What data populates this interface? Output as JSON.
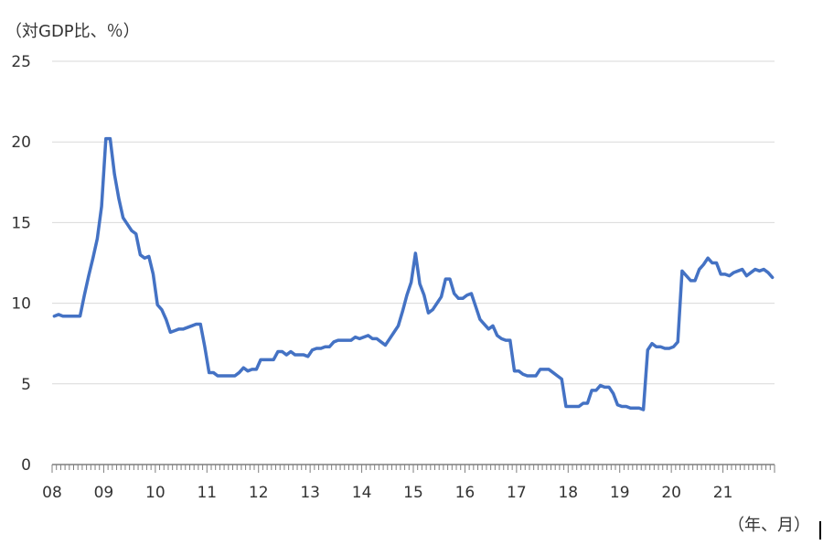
{
  "chart_data": {
    "type": "line",
    "ylabel": "（対GDP比、％）",
    "xlabel": "（年、月）",
    "ylim": [
      0,
      25
    ],
    "yticks": [
      0,
      5,
      10,
      15,
      20,
      25
    ],
    "xtick_labels": [
      "08",
      "09",
      "10",
      "11",
      "12",
      "13",
      "14",
      "15",
      "16",
      "17",
      "18",
      "19",
      "20",
      "21"
    ],
    "grid": "horizontal",
    "colors": {
      "series": "#4472c4",
      "grid": "#d9d9d9",
      "axis": "#7f7f7f"
    },
    "series": [
      {
        "values": [
          9.2,
          9.3,
          9.2,
          9.2,
          9.2,
          9.2,
          9.2,
          10.5,
          11.7,
          12.8,
          14.0,
          16.0,
          20.2,
          20.2,
          18.0,
          16.5,
          15.3,
          14.9,
          14.5,
          14.3,
          13.0,
          12.8,
          12.9,
          11.8,
          9.9,
          9.6,
          9.0,
          8.2,
          8.3,
          8.4,
          8.4,
          8.5,
          8.6,
          8.7,
          8.7,
          7.3,
          5.7,
          5.7,
          5.5,
          5.5,
          5.5,
          5.5,
          5.5,
          5.7,
          6.0,
          5.8,
          5.9,
          5.9,
          6.5,
          6.5,
          6.5,
          6.5,
          7.0,
          7.0,
          6.8,
          7.0,
          6.8,
          6.8,
          6.8,
          6.7,
          7.1,
          7.2,
          7.2,
          7.3,
          7.3,
          7.6,
          7.7,
          7.7,
          7.7,
          7.7,
          7.9,
          7.8,
          7.9,
          8.0,
          7.8,
          7.8,
          7.6,
          7.4,
          7.8,
          8.2,
          8.6,
          9.5,
          10.5,
          11.3,
          13.1,
          11.2,
          10.5,
          9.4,
          9.6,
          10.0,
          10.4,
          11.5,
          11.5,
          10.6,
          10.3,
          10.3,
          10.5,
          10.6,
          9.8,
          9.0,
          8.7,
          8.4,
          8.6,
          8.0,
          7.8,
          7.7,
          7.7,
          5.8,
          5.8,
          5.6,
          5.5,
          5.5,
          5.5,
          5.9,
          5.9,
          5.9,
          5.7,
          5.5,
          5.3,
          3.6,
          3.6,
          3.6,
          3.6,
          3.8,
          3.8,
          4.6,
          4.6,
          4.9,
          4.8,
          4.8,
          4.4,
          3.7,
          3.6,
          3.6,
          3.5,
          3.5,
          3.5,
          3.4,
          7.1,
          7.5,
          7.3,
          7.3,
          7.2,
          7.2,
          7.3,
          7.6,
          12.0,
          11.7,
          11.4,
          11.4,
          12.1,
          12.4,
          12.8,
          12.5,
          12.5,
          11.8,
          11.8,
          11.7,
          11.9,
          12.0,
          12.1,
          11.7,
          11.9,
          12.1,
          12.0,
          12.1,
          11.9,
          11.6
        ]
      }
    ]
  }
}
